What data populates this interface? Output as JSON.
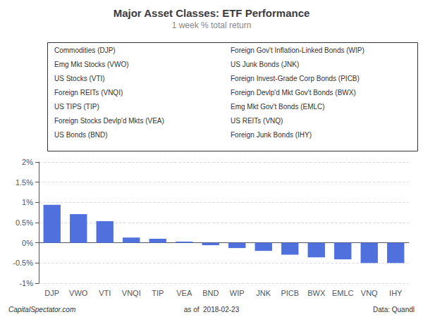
{
  "chart_data": {
    "type": "bar",
    "title": "Major Asset Classes: ETF Performance",
    "subtitle": "1 week % total return",
    "categories": [
      "DJP",
      "VWO",
      "VTI",
      "VNQI",
      "TIP",
      "VEA",
      "BND",
      "WIP",
      "JNK",
      "PICB",
      "BWX",
      "EMLC",
      "VNQ",
      "IHY"
    ],
    "values": [
      0.94,
      0.71,
      0.535,
      0.13,
      0.1,
      0.03,
      -0.06,
      -0.13,
      -0.2,
      -0.295,
      -0.36,
      -0.41,
      -0.5,
      -0.5
    ],
    "ylim": [
      -1.0,
      2.0
    ],
    "yticks": [
      {
        "value": -1.0,
        "label": "-1%"
      },
      {
        "value": -0.5,
        "label": "-0.5%"
      },
      {
        "value": 0.0,
        "label": "0%"
      },
      {
        "value": 0.5,
        "label": "0.5%"
      },
      {
        "value": 1.0,
        "label": "1%"
      },
      {
        "value": 1.5,
        "label": "1.5%"
      },
      {
        "value": 2.0,
        "label": "2%"
      }
    ],
    "grid": true,
    "annotations": [
      "Commodities (DJP)",
      "Emg Mkt Stocks (VWO)",
      "US Stocks (VTI)",
      "Foreign REITs (VNQI)",
      "US TIPS (TIP)",
      "Foreign Stocks Devlp'd Mkts (VEA)",
      "US Bonds (BND)",
      "Foreign Gov't Inflation-Linked Bonds (WIP)",
      "US Junk Bonds (JNK)",
      "Foreign Invest-Grade Corp Bonds (PICB)",
      "Foreign Devlp'd Mkt Gov't Bonds (BWX)",
      "Emg Mkt Gov't Bonds (EMLC)",
      "US REITs (VNQ)",
      "Foreign Junk Bonds (IHY)",
      "CapitalSpectator.com",
      "as of  2018-02-23",
      "Data: Quandl"
    ]
  }
}
